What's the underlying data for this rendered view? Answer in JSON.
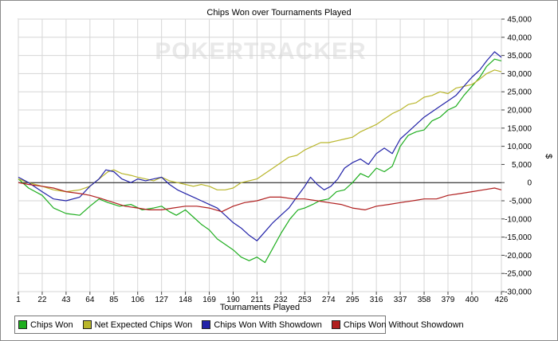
{
  "chart_data": {
    "type": "line",
    "title": "Chips Won over Tournaments Played",
    "xlabel": "Tournaments Played",
    "ylabel": "$",
    "watermark": "POKERTRACKER",
    "xlim": [
      1,
      426
    ],
    "ylim": [
      -30000,
      45000
    ],
    "x_ticks": [
      "1",
      "22",
      "43",
      "64",
      "85",
      "106",
      "127",
      "148",
      "169",
      "190",
      "211",
      "232",
      "253",
      "274",
      "295",
      "316",
      "337",
      "358",
      "379",
      "400",
      "426"
    ],
    "y_ticks": [
      "45,000",
      "40,000",
      "35,000",
      "30,000",
      "25,000",
      "20,000",
      "15,000",
      "10,000",
      "5,000",
      "0",
      "-5,000",
      "-10,000",
      "-15,000",
      "-20,000",
      "-25,000",
      "-30,000"
    ],
    "grid": true,
    "legend_position": "bottom-left",
    "series": [
      {
        "name": "Chips Won",
        "color": "#1fae1f",
        "points": [
          [
            1,
            1000
          ],
          [
            10,
            -1500
          ],
          [
            22,
            -3500
          ],
          [
            32,
            -7000
          ],
          [
            43,
            -8500
          ],
          [
            55,
            -9000
          ],
          [
            64,
            -6500
          ],
          [
            72,
            -4500
          ],
          [
            80,
            -5500
          ],
          [
            90,
            -6500
          ],
          [
            100,
            -6000
          ],
          [
            110,
            -7500
          ],
          [
            120,
            -7000
          ],
          [
            127,
            -6500
          ],
          [
            134,
            -8000
          ],
          [
            140,
            -9000
          ],
          [
            148,
            -7500
          ],
          [
            155,
            -9500
          ],
          [
            162,
            -11500
          ],
          [
            169,
            -13000
          ],
          [
            176,
            -15500
          ],
          [
            183,
            -17000
          ],
          [
            190,
            -18500
          ],
          [
            197,
            -20500
          ],
          [
            204,
            -21500
          ],
          [
            211,
            -20500
          ],
          [
            218,
            -22000
          ],
          [
            225,
            -18000
          ],
          [
            232,
            -14000
          ],
          [
            240,
            -10000
          ],
          [
            247,
            -7500
          ],
          [
            253,
            -7000
          ],
          [
            260,
            -6000
          ],
          [
            266,
            -5000
          ],
          [
            274,
            -4500
          ],
          [
            281,
            -2500
          ],
          [
            288,
            -2000
          ],
          [
            295,
            0
          ],
          [
            302,
            2500
          ],
          [
            309,
            1500
          ],
          [
            316,
            4000
          ],
          [
            323,
            3000
          ],
          [
            330,
            4500
          ],
          [
            337,
            10000
          ],
          [
            344,
            13000
          ],
          [
            351,
            14000
          ],
          [
            358,
            14500
          ],
          [
            365,
            17000
          ],
          [
            372,
            18000
          ],
          [
            379,
            20000
          ],
          [
            386,
            21000
          ],
          [
            393,
            24000
          ],
          [
            400,
            26500
          ],
          [
            407,
            29000
          ],
          [
            413,
            32000
          ],
          [
            420,
            34000
          ],
          [
            426,
            33500
          ]
        ]
      },
      {
        "name": "Net Expected Chips Won",
        "color": "#b9b62b",
        "points": [
          [
            1,
            1000
          ],
          [
            10,
            0
          ],
          [
            22,
            -1000
          ],
          [
            32,
            -2000
          ],
          [
            43,
            -2500
          ],
          [
            55,
            -2000
          ],
          [
            64,
            -1000
          ],
          [
            72,
            1000
          ],
          [
            80,
            3000
          ],
          [
            85,
            3500
          ],
          [
            92,
            2500
          ],
          [
            100,
            2000
          ],
          [
            106,
            1500
          ],
          [
            113,
            1000
          ],
          [
            120,
            500
          ],
          [
            127,
            1500
          ],
          [
            134,
            500
          ],
          [
            141,
            0
          ],
          [
            148,
            -500
          ],
          [
            155,
            -1000
          ],
          [
            162,
            -500
          ],
          [
            169,
            -1000
          ],
          [
            176,
            -2000
          ],
          [
            183,
            -2000
          ],
          [
            190,
            -1500
          ],
          [
            197,
            0
          ],
          [
            204,
            500
          ],
          [
            211,
            1000
          ],
          [
            218,
            2500
          ],
          [
            225,
            4000
          ],
          [
            232,
            5500
          ],
          [
            239,
            7000
          ],
          [
            246,
            7500
          ],
          [
            253,
            9000
          ],
          [
            260,
            10000
          ],
          [
            267,
            11000
          ],
          [
            274,
            11000
          ],
          [
            281,
            11500
          ],
          [
            288,
            12000
          ],
          [
            295,
            12500
          ],
          [
            302,
            14000
          ],
          [
            309,
            15000
          ],
          [
            316,
            16000
          ],
          [
            323,
            17500
          ],
          [
            330,
            19000
          ],
          [
            337,
            20000
          ],
          [
            344,
            21500
          ],
          [
            351,
            22000
          ],
          [
            358,
            23500
          ],
          [
            365,
            24000
          ],
          [
            372,
            25000
          ],
          [
            379,
            24500
          ],
          [
            386,
            26000
          ],
          [
            393,
            26500
          ],
          [
            400,
            27000
          ],
          [
            407,
            28500
          ],
          [
            413,
            30000
          ],
          [
            420,
            31000
          ],
          [
            426,
            30500
          ]
        ]
      },
      {
        "name": "Chips Won With Showdown",
        "color": "#2222a8",
        "points": [
          [
            1,
            1500
          ],
          [
            10,
            0
          ],
          [
            22,
            -2500
          ],
          [
            32,
            -4500
          ],
          [
            43,
            -5000
          ],
          [
            55,
            -4000
          ],
          [
            64,
            -1000
          ],
          [
            72,
            1000
          ],
          [
            78,
            3500
          ],
          [
            85,
            3000
          ],
          [
            92,
            1000
          ],
          [
            100,
            0
          ],
          [
            106,
            1000
          ],
          [
            113,
            500
          ],
          [
            120,
            1000
          ],
          [
            127,
            1500
          ],
          [
            134,
            -500
          ],
          [
            141,
            -2000
          ],
          [
            148,
            -3000
          ],
          [
            155,
            -4000
          ],
          [
            162,
            -5000
          ],
          [
            169,
            -6000
          ],
          [
            176,
            -7000
          ],
          [
            183,
            -9000
          ],
          [
            190,
            -11000
          ],
          [
            197,
            -12500
          ],
          [
            204,
            -14500
          ],
          [
            211,
            -16000
          ],
          [
            218,
            -13500
          ],
          [
            225,
            -11000
          ],
          [
            232,
            -9000
          ],
          [
            239,
            -7000
          ],
          [
            246,
            -4000
          ],
          [
            253,
            -1000
          ],
          [
            258,
            1500
          ],
          [
            264,
            -500
          ],
          [
            270,
            -2000
          ],
          [
            276,
            -1000
          ],
          [
            282,
            1000
          ],
          [
            288,
            4000
          ],
          [
            295,
            5500
          ],
          [
            302,
            6500
          ],
          [
            309,
            5000
          ],
          [
            316,
            8000
          ],
          [
            323,
            9500
          ],
          [
            330,
            8000
          ],
          [
            337,
            12000
          ],
          [
            344,
            14000
          ],
          [
            351,
            16000
          ],
          [
            358,
            18000
          ],
          [
            365,
            19500
          ],
          [
            372,
            21000
          ],
          [
            379,
            22500
          ],
          [
            386,
            24000
          ],
          [
            393,
            26500
          ],
          [
            400,
            29000
          ],
          [
            407,
            31000
          ],
          [
            413,
            33500
          ],
          [
            420,
            36000
          ],
          [
            426,
            34500
          ]
        ]
      },
      {
        "name": "Chips Won Without Showdown",
        "color": "#b01f1f",
        "points": [
          [
            1,
            0
          ],
          [
            10,
            -500
          ],
          [
            22,
            -1000
          ],
          [
            32,
            -1500
          ],
          [
            43,
            -2500
          ],
          [
            55,
            -3000
          ],
          [
            64,
            -3500
          ],
          [
            75,
            -4500
          ],
          [
            85,
            -5500
          ],
          [
            95,
            -6500
          ],
          [
            106,
            -7000
          ],
          [
            116,
            -7500
          ],
          [
            127,
            -7500
          ],
          [
            137,
            -7000
          ],
          [
            148,
            -6500
          ],
          [
            158,
            -6500
          ],
          [
            169,
            -7000
          ],
          [
            180,
            -8000
          ],
          [
            190,
            -6500
          ],
          [
            200,
            -5500
          ],
          [
            211,
            -5000
          ],
          [
            222,
            -4000
          ],
          [
            232,
            -4000
          ],
          [
            243,
            -4500
          ],
          [
            253,
            -4500
          ],
          [
            264,
            -5000
          ],
          [
            274,
            -5500
          ],
          [
            285,
            -6000
          ],
          [
            295,
            -7000
          ],
          [
            306,
            -7500
          ],
          [
            316,
            -6500
          ],
          [
            327,
            -6000
          ],
          [
            337,
            -5500
          ],
          [
            348,
            -5000
          ],
          [
            358,
            -4500
          ],
          [
            369,
            -4500
          ],
          [
            379,
            -3500
          ],
          [
            390,
            -3000
          ],
          [
            400,
            -2500
          ],
          [
            410,
            -2000
          ],
          [
            420,
            -1500
          ],
          [
            426,
            -2000
          ]
        ]
      }
    ]
  }
}
